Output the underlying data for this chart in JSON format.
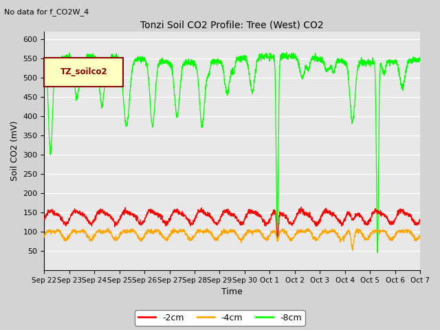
{
  "title": "Tonzi Soil CO2 Profile: Tree (West) CO2",
  "subtitle": "No data for f_CO2W_4",
  "ylabel": "Soil CO2 (mV)",
  "xlabel": "Time",
  "legend_label": "TZ_soilco2",
  "ylim": [
    0,
    620
  ],
  "yticks": [
    50,
    100,
    150,
    200,
    250,
    300,
    350,
    400,
    450,
    500,
    550,
    600
  ],
  "line_colors": {
    "green": "#00FF00",
    "red": "#FF0000",
    "orange": "#FFA500"
  },
  "bg_color": "#E8E8E8",
  "grid_color": "#FFFFFF",
  "legend_box_facecolor": "#FFFFC0",
  "legend_box_edgecolor": "#8B0000",
  "legend_text_color": "#8B0000",
  "legend_entries": [
    {
      "label": "-2cm",
      "color": "#FF0000"
    },
    {
      "label": "-4cm",
      "color": "#FFA500"
    },
    {
      "label": "-8cm",
      "color": "#00FF00"
    }
  ],
  "xtick_labels": [
    "Sep 22",
    "Sep 23",
    "Sep 24",
    "Sep 25",
    "Sep 26",
    "Sep 27",
    "Sep 28",
    "Sep 29",
    "Sep 30",
    "Oct 1",
    "Oct 2",
    "Oct 3",
    "Oct 4",
    "Oct 5",
    "Oct 6",
    "Oct 7"
  ]
}
